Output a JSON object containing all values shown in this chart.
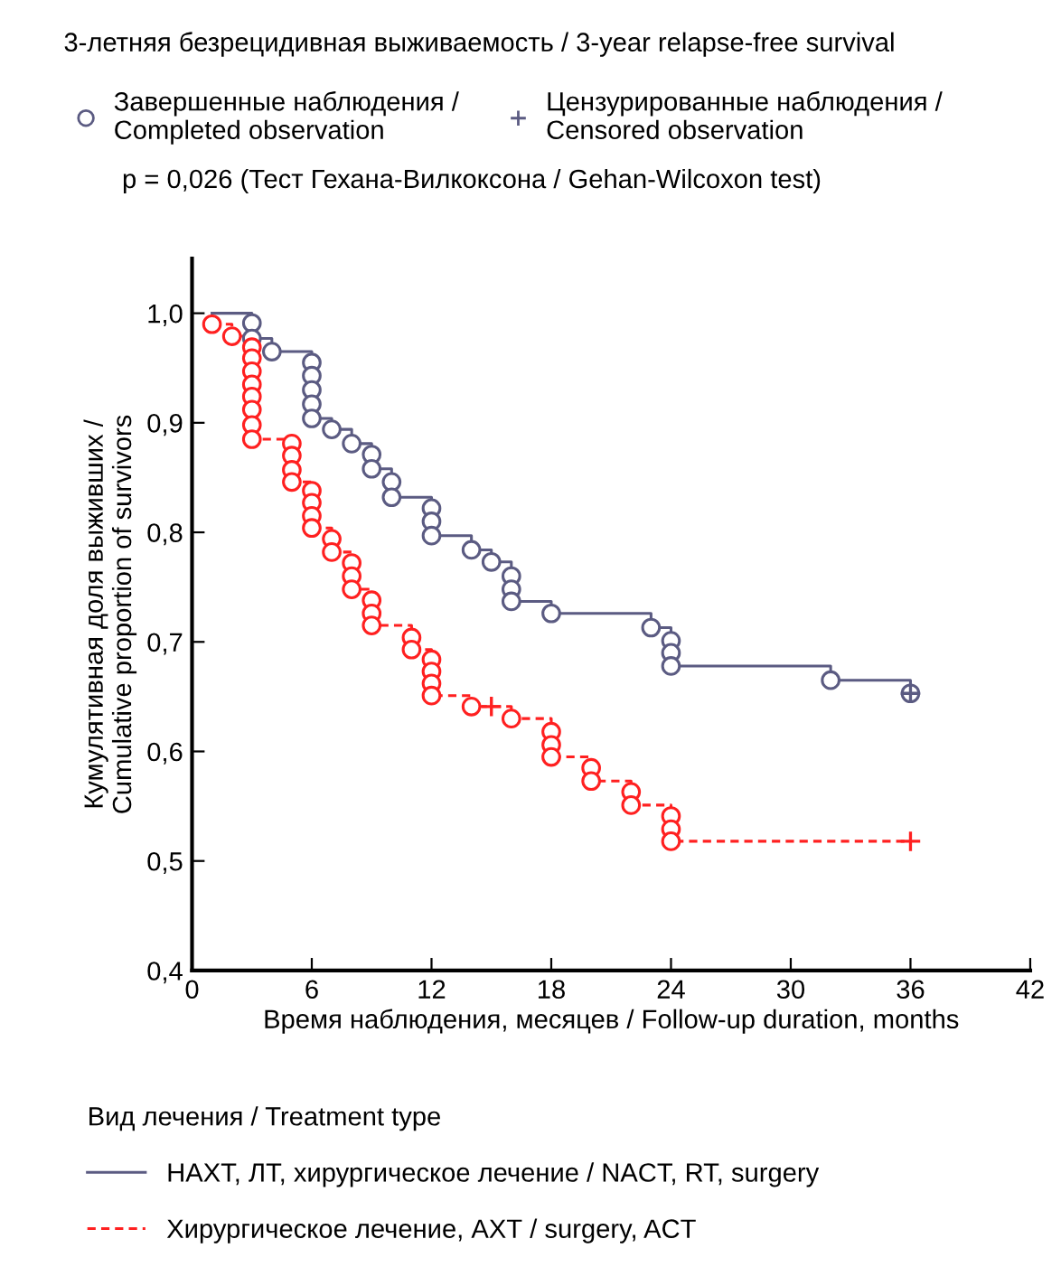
{
  "chart_data": {
    "type": "step",
    "title": "3-летняя безрецидивная выживаемость / 3-year relapse-free survival",
    "annotations": [
      "p = 0,026 (Тест Гехана-Вилкоксона / Gehan-Wilcoxon test)"
    ],
    "xlabel": "Время наблюдения, месяцев / Follow-up duration, months",
    "ylabel": "Кумулятивная доля выживших /\nCumulative proportion of survivors",
    "legend_title": "Вид лечения / Treatment type",
    "legend": "bottom",
    "xlim": [
      0,
      42
    ],
    "xticks": [
      0,
      6,
      12,
      18,
      24,
      30,
      36,
      42
    ],
    "ylim": [
      0.4,
      1.05
    ],
    "yticks": [
      {
        "value": 0.4,
        "label": "0,4"
      },
      {
        "value": 0.5,
        "label": "0,5"
      },
      {
        "value": 0.6,
        "label": "0,6"
      },
      {
        "value": 0.7,
        "label": "0,7"
      },
      {
        "value": 0.8,
        "label": "0,8"
      },
      {
        "value": 0.9,
        "label": "0,9"
      },
      {
        "value": 1.0,
        "label": "1,0"
      }
    ],
    "grid": false,
    "series": [
      {
        "name": "НАХТ, ЛТ, хирургическое лечение / NACT, RT, surgery",
        "color": "#5b5b82",
        "line_style": "solid",
        "marker": "none",
        "x": [
          1,
          3,
          4,
          6,
          7,
          8,
          9,
          10,
          12,
          14,
          15,
          16,
          18,
          23,
          24,
          32,
          36
        ],
        "values": [
          1.0,
          0.977,
          0.965,
          0.904,
          0.894,
          0.881,
          0.858,
          0.832,
          0.797,
          0.784,
          0.773,
          0.737,
          0.726,
          0.713,
          0.678,
          0.665,
          0.653
        ]
      },
      {
        "name": "Хирургическое лечение, АХТ / surgery, ACT",
        "color": "#ff2020",
        "line_style": "dashed",
        "marker": "none",
        "x": [
          1,
          2,
          3,
          5,
          6,
          7,
          8,
          9,
          11,
          12,
          14,
          16,
          18,
          20,
          22,
          24,
          36
        ],
        "values": [
          0.99,
          0.979,
          0.885,
          0.846,
          0.804,
          0.782,
          0.748,
          0.715,
          0.693,
          0.651,
          0.641,
          0.63,
          0.595,
          0.573,
          0.551,
          0.518,
          0.518
        ]
      },
      {
        "name": "Завершенные наблюдения /\nCompleted observation",
        "type": "scatter",
        "color": "#5b5b82",
        "marker": "circle",
        "x": [
          3,
          3,
          4,
          6,
          6,
          6,
          6,
          6,
          7,
          8,
          9,
          9,
          10,
          10,
          12,
          12,
          12,
          14,
          15,
          16,
          16,
          16,
          18,
          23,
          24,
          24,
          24,
          32,
          36,
          1,
          2,
          3,
          3,
          3,
          3,
          3,
          3,
          3,
          3,
          5,
          5,
          5,
          5,
          6,
          6,
          6,
          6,
          7,
          7,
          8,
          8,
          8,
          9,
          9,
          9,
          11,
          11,
          12,
          12,
          12,
          12,
          14,
          16,
          18,
          18,
          18,
          20,
          20,
          22,
          22,
          24,
          24,
          24
        ],
        "values": [
          0.991,
          0.977,
          0.965,
          0.955,
          0.943,
          0.93,
          0.917,
          0.904,
          0.894,
          0.881,
          0.871,
          0.858,
          0.846,
          0.832,
          0.822,
          0.81,
          0.797,
          0.784,
          0.773,
          0.76,
          0.748,
          0.737,
          0.726,
          0.713,
          0.701,
          0.69,
          0.678,
          0.665,
          0.653,
          0.99,
          0.979,
          0.969,
          0.959,
          0.947,
          0.935,
          0.924,
          0.912,
          0.898,
          0.885,
          0.881,
          0.87,
          0.857,
          0.846,
          0.838,
          0.827,
          0.815,
          0.804,
          0.794,
          0.782,
          0.772,
          0.76,
          0.748,
          0.738,
          0.726,
          0.715,
          0.704,
          0.693,
          0.684,
          0.673,
          0.662,
          0.651,
          0.641,
          0.63,
          0.618,
          0.606,
          0.595,
          0.585,
          0.573,
          0.563,
          0.551,
          0.541,
          0.529,
          0.518
        ],
        "colors": [
          "#5b5b82",
          "#5b5b82",
          "#5b5b82",
          "#5b5b82",
          "#5b5b82",
          "#5b5b82",
          "#5b5b82",
          "#5b5b82",
          "#5b5b82",
          "#5b5b82",
          "#5b5b82",
          "#5b5b82",
          "#5b5b82",
          "#5b5b82",
          "#5b5b82",
          "#5b5b82",
          "#5b5b82",
          "#5b5b82",
          "#5b5b82",
          "#5b5b82",
          "#5b5b82",
          "#5b5b82",
          "#5b5b82",
          "#5b5b82",
          "#5b5b82",
          "#5b5b82",
          "#5b5b82",
          "#5b5b82",
          "#5b5b82",
          "#ff2020",
          "#ff2020",
          "#ff2020",
          "#ff2020",
          "#ff2020",
          "#ff2020",
          "#ff2020",
          "#ff2020",
          "#ff2020",
          "#ff2020",
          "#ff2020",
          "#ff2020",
          "#ff2020",
          "#ff2020",
          "#ff2020",
          "#ff2020",
          "#ff2020",
          "#ff2020",
          "#ff2020",
          "#ff2020",
          "#ff2020",
          "#ff2020",
          "#ff2020",
          "#ff2020",
          "#ff2020",
          "#ff2020",
          "#ff2020",
          "#ff2020",
          "#ff2020",
          "#ff2020",
          "#ff2020",
          "#ff2020",
          "#ff2020",
          "#ff2020",
          "#ff2020",
          "#ff2020",
          "#ff2020",
          "#ff2020",
          "#ff2020",
          "#ff2020",
          "#ff2020",
          "#ff2020",
          "#ff2020",
          "#ff2020"
        ]
      },
      {
        "name": "Цензурированные наблюдения /\nCensored observation",
        "type": "scatter",
        "color": "#5b5b82",
        "marker": "cross",
        "x": [
          36,
          15,
          36
        ],
        "values": [
          0.653,
          0.641,
          0.518
        ],
        "colors": [
          "#5b5b82",
          "#ff2020",
          "#ff2020"
        ]
      }
    ]
  }
}
